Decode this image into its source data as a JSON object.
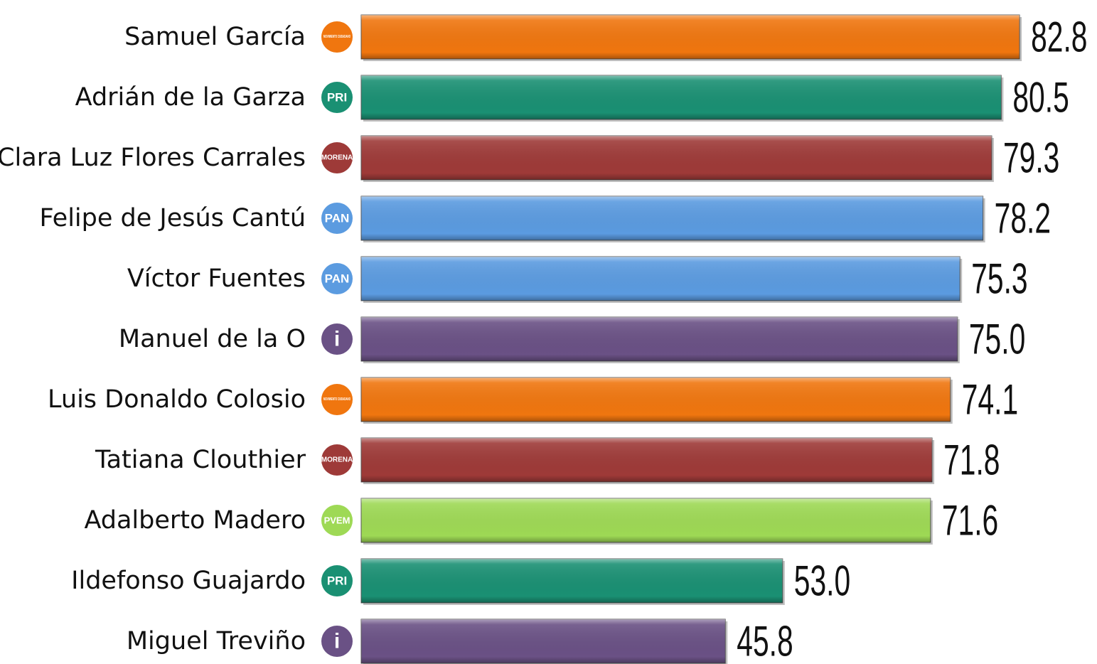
{
  "chart_data": {
    "type": "barh",
    "categories": [
      "Samuel García",
      "Adrián de la Garza",
      "Clara Luz Flores Carrales",
      "Felipe de Jesús Cantú",
      "Víctor Fuentes",
      "Manuel de la O",
      "Luis Donaldo Colosio",
      "Tatiana Clouthier",
      "Adalberto Madero",
      "Ildefonso Guajardo",
      "Miguel Treviño"
    ],
    "parties": [
      "MOVIMIENTO CIUDADANO",
      "PRI",
      "MORENA",
      "PAN",
      "PAN",
      "i",
      "MOVIMIENTO CIUDADANO",
      "MORENA",
      "PVEM",
      "PRI",
      "i"
    ],
    "values": [
      82.8,
      80.5,
      79.3,
      78.2,
      75.3,
      75.0,
      74.1,
      71.8,
      71.6,
      53.0,
      45.8
    ],
    "value_labels": [
      "82.8",
      "80.5",
      "79.3",
      "78.2",
      "75.3",
      "75.0",
      "74.1",
      "71.8",
      "71.6",
      "53.0",
      "45.8"
    ],
    "colors": [
      "#f0760f",
      "#1a9073",
      "#9e3a38",
      "#5b9be0",
      "#5b9be0",
      "#6a5185",
      "#f0760f",
      "#9e3a38",
      "#9ed955",
      "#1a9073",
      "#6a5185"
    ],
    "xlim": [
      0,
      92
    ]
  }
}
